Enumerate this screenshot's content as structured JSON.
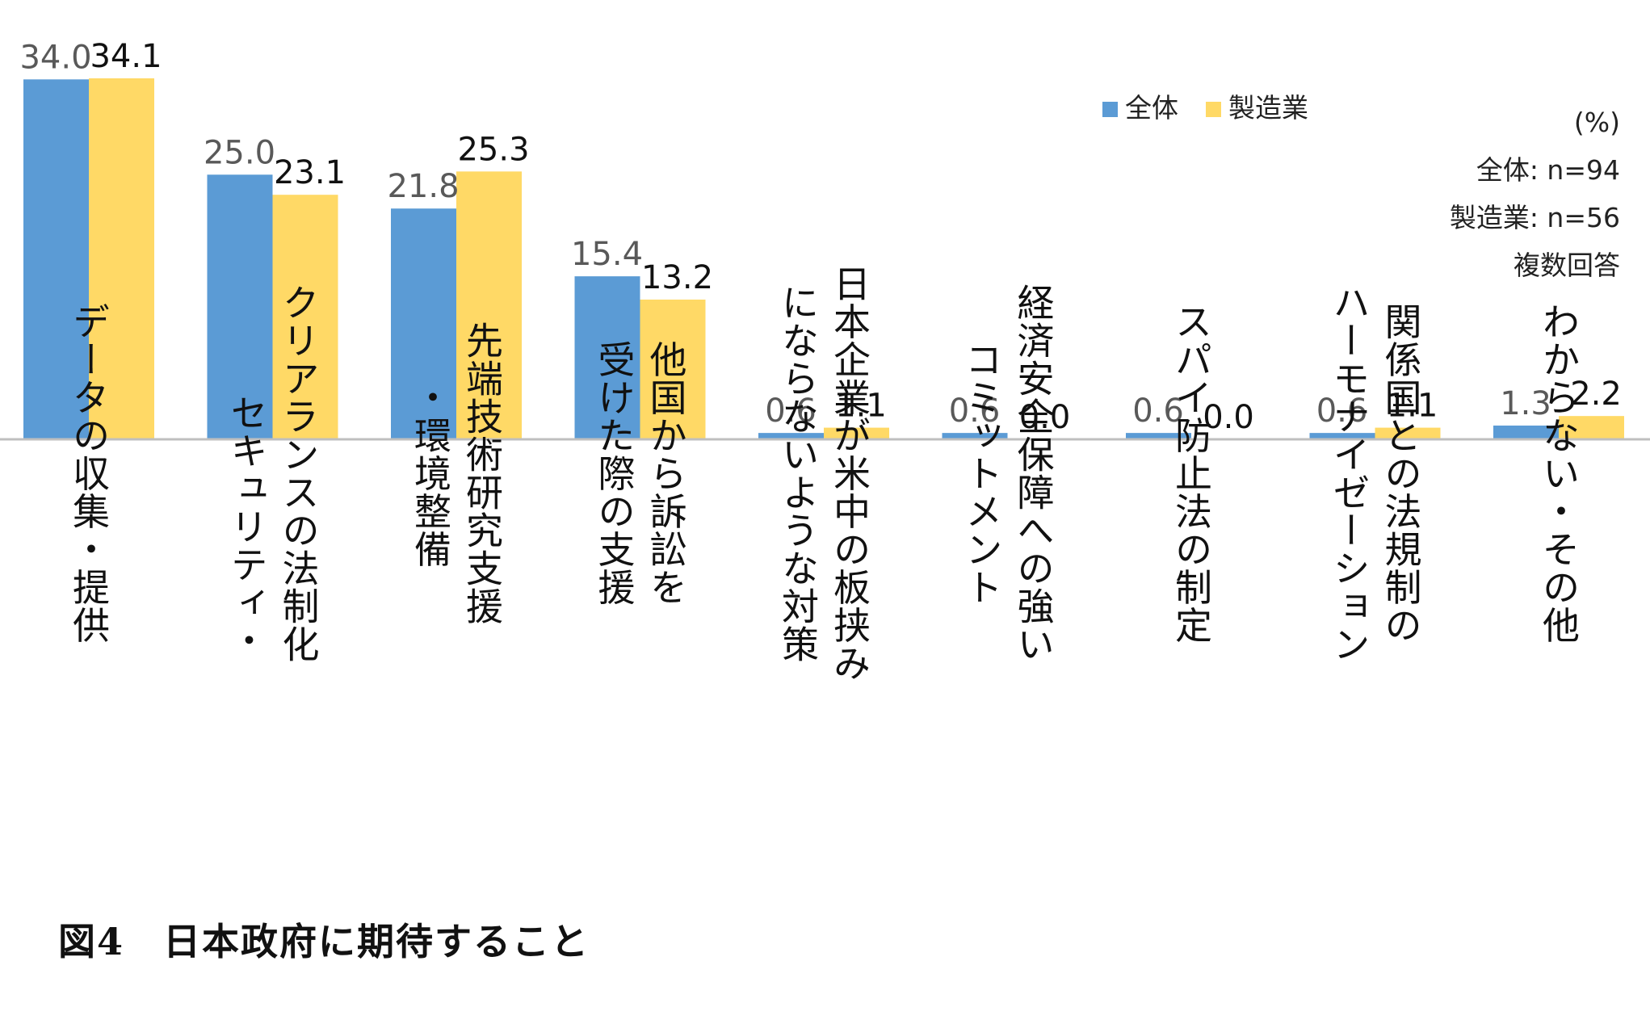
{
  "chart_data": {
    "type": "bar",
    "categories": [
      [
        "データの収集・提供"
      ],
      [
        "クリアランスの法制化",
        "セキュリティ・"
      ],
      [
        "先端技術研究支援",
        "・環境整備"
      ],
      [
        "他国から訴訟を",
        "受けた際の支援"
      ],
      [
        "日本企業が米中の板挟み",
        "にならないような対策"
      ],
      [
        "経済安全保障への強い",
        "コミットメント"
      ],
      [
        "スパイ防止法の制定"
      ],
      [
        "関係国との法規制の",
        "ハーモナイゼーション"
      ],
      [
        "わからない・その他"
      ]
    ],
    "series": [
      {
        "name": "全体",
        "color": "#5B9BD5",
        "values": [
          34.0,
          25.0,
          21.8,
          15.4,
          0.6,
          0.6,
          0.6,
          0.6,
          1.3
        ],
        "labels": [
          "34.0",
          "25.0",
          "21.8",
          "15.4",
          "0.6",
          "0.6",
          "0.6",
          "0.6",
          "1.3"
        ]
      },
      {
        "name": "製造業",
        "color": "#FFD966",
        "values": [
          34.1,
          23.1,
          25.3,
          13.2,
          1.1,
          0.0,
          0.0,
          1.1,
          2.2
        ],
        "labels": [
          "34.1",
          "23.1",
          "25.3",
          "13.2",
          "1.1",
          "0.0",
          "0.0",
          "1.1",
          "2.2"
        ]
      }
    ],
    "ylim": [
      0,
      34.1
    ],
    "grid": false,
    "legend_position": "top-right",
    "notes": [
      "(%)",
      "全体: n=94",
      "製造業: n=56",
      "複数回答"
    ]
  },
  "figure_title": "図4　日本政府に期待すること"
}
